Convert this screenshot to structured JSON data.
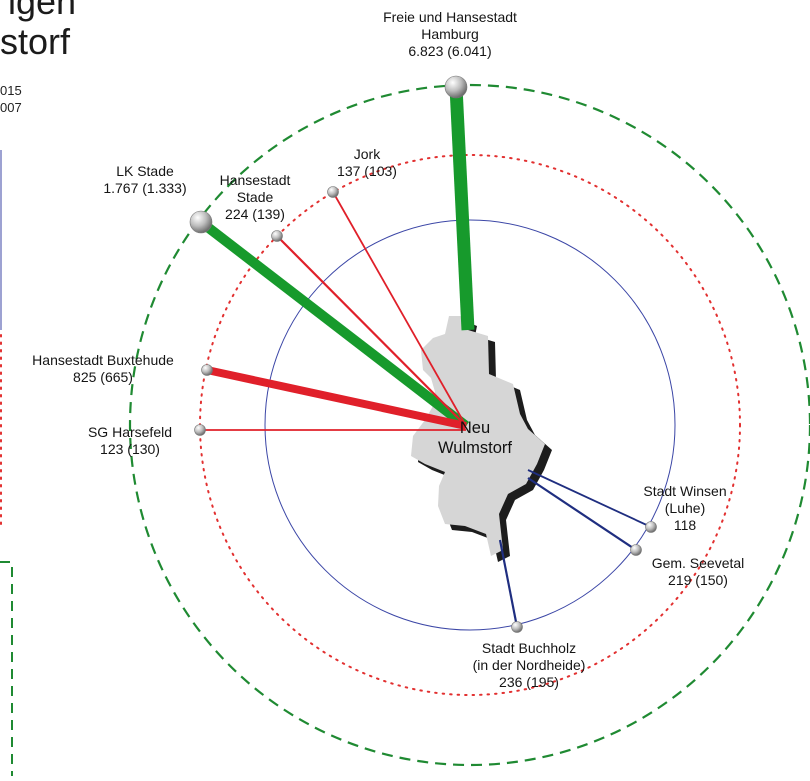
{
  "title": {
    "line1_fragment": "igen",
    "line2_fragment": "storf"
  },
  "legend_fragment": {
    "line1": "015",
    "line2": "007"
  },
  "center": {
    "line1": "Neu",
    "line2": "Wulmstorf"
  },
  "flows": [
    {
      "id": "hamburg",
      "name_lines": [
        "Freie und Hansestadt",
        "Hamburg"
      ],
      "value": "6.823",
      "prev": "6.041",
      "value_label": "6.823 (6.041)",
      "color": "#179a2c",
      "ring": "outer"
    },
    {
      "id": "lk-stade",
      "name_lines": [
        "LK Stade"
      ],
      "value": "1.767",
      "prev": "1.333",
      "value_label": "1.767 (1.333)",
      "color": "#179a2c",
      "ring": "outer"
    },
    {
      "id": "hansestadt-stade",
      "name_lines": [
        "Hansestadt",
        "Stade"
      ],
      "value": "224",
      "prev": "139",
      "value_label": "224 (139)",
      "color": "#e0202a",
      "ring": "middle"
    },
    {
      "id": "jork",
      "name_lines": [
        "Jork"
      ],
      "value": "137",
      "prev": "103",
      "value_label": "137 (103)",
      "color": "#e0202a",
      "ring": "middle"
    },
    {
      "id": "buxtehude",
      "name_lines": [
        "Hansestadt Buxtehude"
      ],
      "value": "825",
      "prev": "665",
      "value_label": "825 (665)",
      "color": "#e0202a",
      "ring": "middle"
    },
    {
      "id": "harsefeld",
      "name_lines": [
        "SG Harsefeld"
      ],
      "value": "123",
      "prev": "130",
      "value_label": "123 (130)",
      "color": "#e0202a",
      "ring": "middle"
    },
    {
      "id": "winsen",
      "name_lines": [
        "Stadt Winsen",
        "(Luhe)"
      ],
      "value": "118",
      "prev": "",
      "value_label": "118",
      "color": "#1f2e80",
      "ring": "inner"
    },
    {
      "id": "seevetal",
      "name_lines": [
        "Gem. Seevetal"
      ],
      "value": "219",
      "prev": "150",
      "value_label": "219 (150)",
      "color": "#1f2e80",
      "ring": "inner"
    },
    {
      "id": "buchholz",
      "name_lines": [
        "Stadt Buchholz",
        "(in der Nordheide)"
      ],
      "value": "236",
      "prev": "195",
      "value_label": "236 (195)",
      "color": "#1f2e80",
      "ring": "inner"
    }
  ],
  "rings": {
    "outer_color": "#1f8a32",
    "middle_color": "#e23030",
    "inner_color": "#3b46a6"
  }
}
